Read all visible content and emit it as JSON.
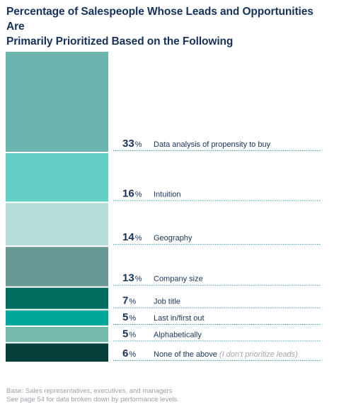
{
  "title": {
    "line1": "Percentage of Salespeople Whose Leads and Opportunities Are",
    "line2": "Primarily Prioritized Based on the Following"
  },
  "chart_data": {
    "type": "bar",
    "orientation": "stacked-vertical",
    "unit": "%",
    "categories": [
      "Data analysis of propensity to buy",
      "Intuition",
      "Geography",
      "Company size",
      "Job title",
      "Last in/first out",
      "Alphabetically",
      "None of the above"
    ],
    "values": [
      33,
      16,
      14,
      13,
      7,
      5,
      5,
      6
    ],
    "annotations": [
      "",
      "",
      "",
      "",
      "",
      "",
      "",
      "(I don't prioritize leads)"
    ],
    "colors": [
      "#6bb5ae",
      "#63cfc6",
      "#b3ddd6",
      "#6a9895",
      "#006d63",
      "#00a69a",
      "#74bbab",
      "#053f3b"
    ],
    "line_color": "#3a9fb0"
  },
  "footer": {
    "line1": "Base: Sales representatives, executives, and managers",
    "line2": "See page 54 for data broken down by performance levels."
  }
}
